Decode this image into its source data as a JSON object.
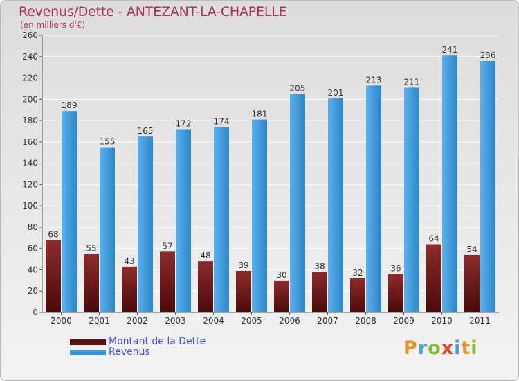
{
  "header": {
    "title": "Revenus/Dette - ANTEZANT-LA-CHAPELLE",
    "subtitle": "(en milliers d'€)"
  },
  "chart_data": {
    "type": "bar",
    "title": "Revenus/Dette - ANTEZANT-LA-CHAPELLE",
    "subtitle": "(en milliers d'€)",
    "xlabel": "",
    "ylabel": "",
    "categories": [
      "2000",
      "2001",
      "2002",
      "2003",
      "2004",
      "2005",
      "2006",
      "2007",
      "2008",
      "2009",
      "2010",
      "2011"
    ],
    "series": [
      {
        "name": "Montant de la Dette",
        "values": [
          68,
          55,
          43,
          57,
          48,
          39,
          30,
          38,
          32,
          36,
          64,
          54
        ]
      },
      {
        "name": "Revenus",
        "values": [
          189,
          155,
          165,
          172,
          174,
          181,
          205,
          201,
          213,
          211,
          241,
          236
        ]
      }
    ],
    "ylim": [
      0,
      260
    ],
    "yticks": [
      0,
      20,
      40,
      60,
      80,
      100,
      120,
      140,
      160,
      180,
      200,
      220,
      240,
      260
    ],
    "grid": true,
    "legend_position": "bottom-left",
    "data_labels": true
  },
  "colors": {
    "title": "#b0305a",
    "dette_top": "#8e2b2b",
    "dette_bottom": "#4a0a0a",
    "revenus_light": "#5cb1ec",
    "revenus_dark": "#2d86c8",
    "legend_text": "#3f52e0",
    "grid": "#ffffff",
    "axis_text": "#333333"
  },
  "legend": {
    "items": [
      {
        "label": "Montant de la Dette",
        "color": "#5a0e0e"
      },
      {
        "label": "Revenus",
        "color": "#3a97dc"
      }
    ]
  },
  "logo": {
    "text": "Proxiti",
    "letter_colors": [
      "#e5912c",
      "#4aa3dc",
      "#8ab83a",
      "#e0442a",
      "#4aa3dc",
      "#e5912c",
      "#8ab83a"
    ]
  }
}
